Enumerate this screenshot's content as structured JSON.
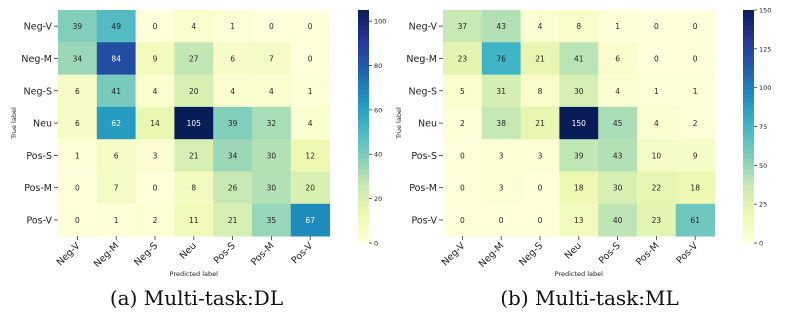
{
  "captions": [
    "(a) Multi-task:DL",
    "(b) Multi-task:ML"
  ],
  "chart_data": [
    {
      "type": "heatmap",
      "xlabel": "Predicted label",
      "ylabel": "True label",
      "x_categories": [
        "Neg-V",
        "Neg-M",
        "Neg-S",
        "Neu",
        "Pos-S",
        "Pos-M",
        "Pos-V"
      ],
      "y_categories": [
        "Neg-V",
        "Neg-M",
        "Neg-S",
        "Neu",
        "Pos-S",
        "Pos-M",
        "Pos-V"
      ],
      "values": [
        [
          39,
          49,
          0,
          4,
          1,
          0,
          0
        ],
        [
          34,
          84,
          9,
          27,
          6,
          7,
          0
        ],
        [
          6,
          41,
          4,
          20,
          4,
          4,
          1
        ],
        [
          6,
          62,
          14,
          105,
          39,
          32,
          4
        ],
        [
          1,
          6,
          3,
          21,
          34,
          30,
          12
        ],
        [
          0,
          7,
          0,
          8,
          26,
          30,
          20
        ],
        [
          0,
          1,
          2,
          11,
          21,
          35,
          67
        ]
      ],
      "colormap": "YlGnBu",
      "colorbar_range": [
        0,
        105
      ],
      "colorbar_ticks": [
        0,
        20,
        40,
        60,
        80,
        100
      ]
    },
    {
      "type": "heatmap",
      "xlabel": "Predicted label",
      "ylabel": "True label",
      "x_categories": [
        "Neg-V",
        "Neg-M",
        "Neg-S",
        "Neu",
        "Pos-S",
        "Pos-M",
        "Pos-V"
      ],
      "y_categories": [
        "Neg-V",
        "Neg-M",
        "Neg-S",
        "Neu",
        "Pos-S",
        "Pos-M",
        "Pos-V"
      ],
      "values": [
        [
          37,
          43,
          4,
          8,
          1,
          0,
          0
        ],
        [
          23,
          76,
          21,
          41,
          6,
          0,
          0
        ],
        [
          5,
          31,
          8,
          30,
          4,
          1,
          1
        ],
        [
          2,
          38,
          21,
          150,
          45,
          4,
          2
        ],
        [
          0,
          3,
          3,
          39,
          43,
          10,
          9
        ],
        [
          0,
          3,
          0,
          18,
          30,
          22,
          18
        ],
        [
          0,
          0,
          0,
          13,
          40,
          23,
          61
        ]
      ],
      "colormap": "YlGnBu",
      "colorbar_range": [
        0,
        150
      ],
      "colorbar_ticks": [
        0,
        25,
        50,
        75,
        100,
        125,
        150
      ]
    }
  ]
}
